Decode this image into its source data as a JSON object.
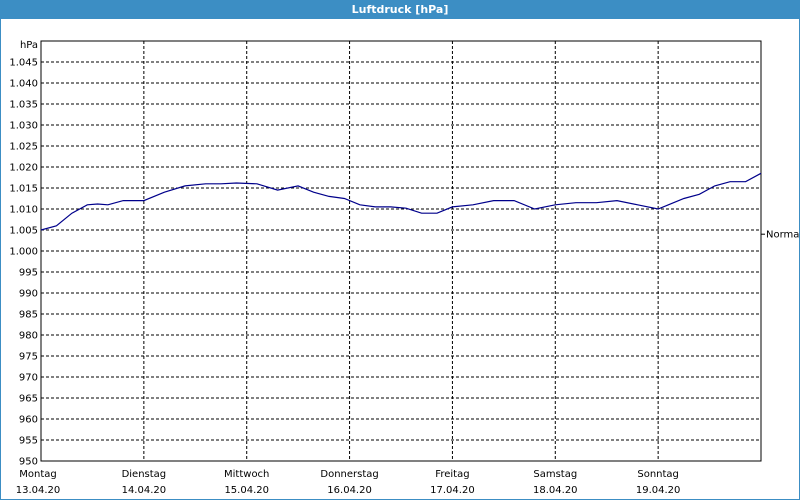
{
  "window": {
    "title": "Luftdruck [hPa]"
  },
  "chart_data": {
    "type": "line",
    "title": "Luftdruck [hPa]",
    "ylabel": "hPa",
    "ylim": [
      950,
      1050
    ],
    "yticks": [
      950,
      955,
      960,
      965,
      970,
      975,
      980,
      985,
      990,
      995,
      1000,
      1005,
      1010,
      1015,
      1020,
      1025,
      1030,
      1035,
      1040,
      1045
    ],
    "ytick_labels": [
      "950",
      "955",
      "960",
      "965",
      "970",
      "975",
      "980",
      "985",
      "990",
      "995",
      "1.000",
      "1.005",
      "1.010",
      "1.015",
      "1.020",
      "1.025",
      "1.030",
      "1.035",
      "1.040",
      "1.045"
    ],
    "xlim": [
      0,
      7
    ],
    "x_categories": [
      {
        "day": "Montag",
        "date": "13.04.20"
      },
      {
        "day": "Dienstag",
        "date": "14.04.20"
      },
      {
        "day": "Mittwoch",
        "date": "15.04.20"
      },
      {
        "day": "Donnerstag",
        "date": "16.04.20"
      },
      {
        "day": "Freitag",
        "date": "17.04.20"
      },
      {
        "day": "Samstag",
        "date": "18.04.20"
      },
      {
        "day": "Sonntag",
        "date": "19.04.20"
      }
    ],
    "reference_line": {
      "label": "Normal",
      "value": 1004
    },
    "grid": true,
    "line_color": "#00008b",
    "series": [
      {
        "x": [
          0,
          0.15,
          0.3,
          0.45,
          0.55,
          0.65,
          0.8,
          1.0,
          1.2,
          1.4,
          1.6,
          1.75,
          1.9,
          2.1,
          2.3,
          2.5,
          2.65,
          2.8,
          2.95,
          3.1,
          3.25,
          3.4,
          3.55,
          3.7,
          3.85,
          4.0,
          4.2,
          4.4,
          4.6,
          4.8,
          5.0,
          5.2,
          5.4,
          5.6,
          5.8,
          6.0,
          6.1,
          6.25,
          6.4,
          6.55,
          6.7,
          6.85,
          7.0
        ],
        "y": [
          1005.0,
          1006.0,
          1009.0,
          1011.0,
          1011.2,
          1011.0,
          1012.0,
          1012.0,
          1014.0,
          1015.5,
          1016.0,
          1016.0,
          1016.2,
          1016.0,
          1014.5,
          1015.5,
          1014.0,
          1013.0,
          1012.5,
          1011.0,
          1010.5,
          1010.5,
          1010.2,
          1009.0,
          1009.0,
          1010.5,
          1011.0,
          1012.0,
          1012.0,
          1010.0,
          1011.0,
          1011.5,
          1011.5,
          1012.0,
          1011.0,
          1010.0,
          1011.0,
          1012.5,
          1013.5,
          1015.5,
          1016.5,
          1016.5,
          1018.5
        ]
      }
    ]
  }
}
